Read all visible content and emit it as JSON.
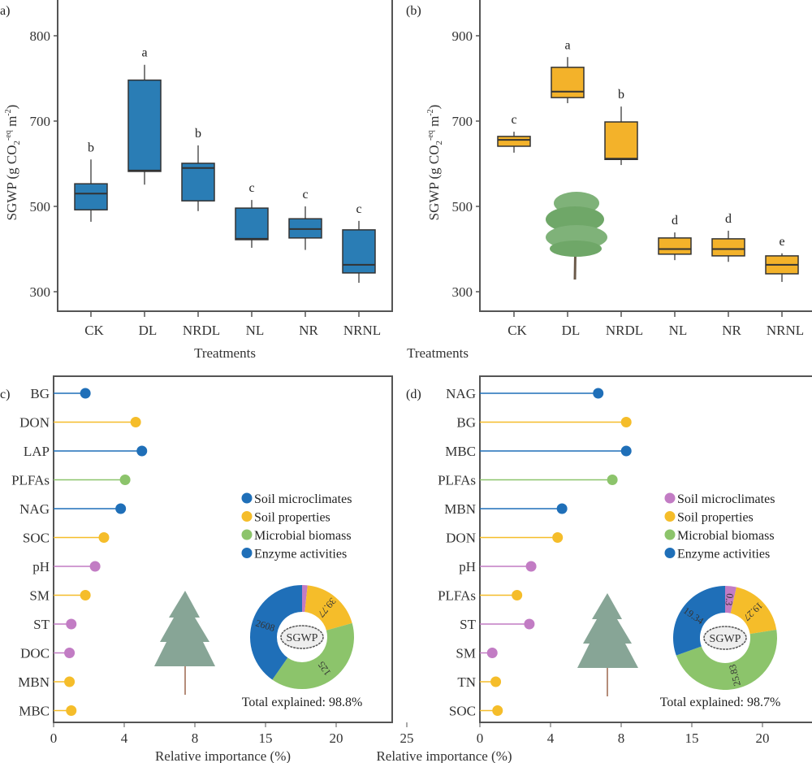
{
  "chart_data": [
    {
      "type": "box",
      "panel_label": "a)",
      "xlabel": "Treatments",
      "ylabel": {
        "main": "SGWP (g CO",
        "sub": "2",
        "sup1": "-eq",
        "mid": " m",
        "sup2": "-2",
        "end": ")"
      },
      "y_ticks": [
        300,
        500,
        700,
        800
      ],
      "categories": [
        "CK",
        "DL",
        "NRDL",
        "NL",
        "NR",
        "NRNL"
      ],
      "boxes": [
        {
          "min": 464,
          "q1": 492,
          "median": 530,
          "q3": 553,
          "max": 610
        },
        {
          "min": 551,
          "q1": 582,
          "median": 584,
          "q3": 748,
          "max": 766
        },
        {
          "min": 489,
          "q1": 513,
          "median": 590,
          "q3": 601,
          "max": 643
        },
        {
          "min": 403,
          "q1": 422,
          "median": 424,
          "q3": 496,
          "max": 515
        },
        {
          "min": 398,
          "q1": 426,
          "median": 447,
          "q3": 471,
          "max": 500
        },
        {
          "min": 321,
          "q1": 344,
          "median": 363,
          "q3": 445,
          "max": 466
        }
      ],
      "letters": [
        "b",
        "a",
        "b",
        "c",
        "c",
        "c"
      ],
      "color": "#2a7db5"
    },
    {
      "type": "box",
      "panel_label": "(b)",
      "xlabel": "Treatments",
      "ylabel": {
        "main": "SGWP (g CO",
        "sub": "2",
        "sup1": "-eq",
        "mid": " m",
        "sup2": "-2",
        "end": ")"
      },
      "y_ticks": [
        300,
        500,
        700,
        900
      ],
      "categories": [
        "CK",
        "DL",
        "NRDL",
        "NL",
        "NR",
        "NRNL"
      ],
      "boxes": [
        {
          "min": 626,
          "q1": 641,
          "median": 656,
          "q3": 664,
          "max": 675
        },
        {
          "min": 742,
          "q1": 755,
          "median": 769,
          "q3": 826,
          "max": 850
        },
        {
          "min": 597,
          "q1": 610,
          "median": 612,
          "q3": 698,
          "max": 734
        },
        {
          "min": 374,
          "q1": 388,
          "median": 400,
          "q3": 426,
          "max": 439
        },
        {
          "min": 370,
          "q1": 384,
          "median": 400,
          "q3": 424,
          "max": 443
        },
        {
          "min": 323,
          "q1": 342,
          "median": 363,
          "q3": 384,
          "max": 390
        }
      ],
      "letters": [
        "c",
        "a",
        "b",
        "d",
        "d",
        "e"
      ],
      "color": "#f3b22a"
    },
    {
      "type": "lollipop",
      "panel_label": "c)",
      "xlabel": "Relative importance (%)",
      "x_ticks": [
        0,
        4,
        8,
        15,
        20,
        25
      ],
      "categories": [
        "BG",
        "DON",
        "LAP",
        "PLFAs",
        "NAG",
        "SOC",
        "pH",
        "SM",
        "ST",
        "DOC",
        "MBN",
        "MBC"
      ],
      "values": [
        1.8,
        4.65,
        5.0,
        4.05,
        3.8,
        2.85,
        2.35,
        1.8,
        1.0,
        0.9,
        0.9,
        1.0
      ],
      "colors": [
        "#1f6fb8",
        "#f5bd2a",
        "#1f6fb8",
        "#8cc46b",
        "#1f6fb8",
        "#f5bd2a",
        "#c27cc4",
        "#f5bd2a",
        "#c27cc4",
        "#c27cc4",
        "#f5bd2a",
        "#f5bd2a"
      ],
      "legend": [
        {
          "label": "Soil microclimates",
          "color": "#1f6fb8"
        },
        {
          "label": "Soil properties",
          "color": "#f5bd2a"
        },
        {
          "label": "Microbial biomass",
          "color": "#8cc46b"
        },
        {
          "label": "Enzyme activities",
          "color": "#1f6fb8"
        }
      ],
      "donut": {
        "center_label": "SGWP",
        "segments": [
          {
            "share": 0.017,
            "color": "#c27cc4",
            "label": ""
          },
          {
            "share": 0.19,
            "color": "#f5bd2a",
            "label": "39.77"
          },
          {
            "share": 0.39,
            "color": "#8cc46b",
            "label": "125"
          },
          {
            "share": 0.403,
            "color": "#1f6fb8",
            "label": "2608"
          }
        ]
      },
      "total_explained": "Total explained: 98.8%"
    },
    {
      "type": "lollipop",
      "panel_label": "(d)",
      "xlabel": "Relative importance (%)",
      "x_ticks": [
        0,
        4,
        8,
        15,
        20,
        25
      ],
      "categories": [
        "NAG",
        "BG",
        "MBC",
        "PLFAs",
        "MBN",
        "DON",
        "pH",
        "PLFAs",
        "ST",
        "SM",
        "TN",
        "SOC"
      ],
      "values": [
        6.7,
        8.5,
        8.5,
        7.5,
        4.65,
        4.4,
        2.9,
        2.1,
        2.8,
        0.7,
        0.9,
        1.0
      ],
      "colors": [
        "#1f6fb8",
        "#f5bd2a",
        "#1f6fb8",
        "#8cc46b",
        "#1f6fb8",
        "#f5bd2a",
        "#c27cc4",
        "#f5bd2a",
        "#c27cc4",
        "#c27cc4",
        "#f5bd2a",
        "#f5bd2a"
      ],
      "legend": [
        {
          "label": "Soil microclimates",
          "color": "#c27cc4"
        },
        {
          "label": "Soil properties",
          "color": "#f5bd2a"
        },
        {
          "label": "Microbial biomass",
          "color": "#8cc46b"
        },
        {
          "label": "Enzyme activities",
          "color": "#1f6fb8"
        }
      ],
      "donut": {
        "center_label": "SGWP",
        "segments": [
          {
            "share": 0.035,
            "color": "#c27cc4",
            "label": "0.3"
          },
          {
            "share": 0.19,
            "color": "#f5bd2a",
            "label": "19.27"
          },
          {
            "share": 0.47,
            "color": "#8cc46b",
            "label": "25.83"
          },
          {
            "share": 0.305,
            "color": "#1f6fb8",
            "label": "19.34"
          }
        ]
      },
      "total_explained": "Total explained: 98.7%"
    }
  ]
}
